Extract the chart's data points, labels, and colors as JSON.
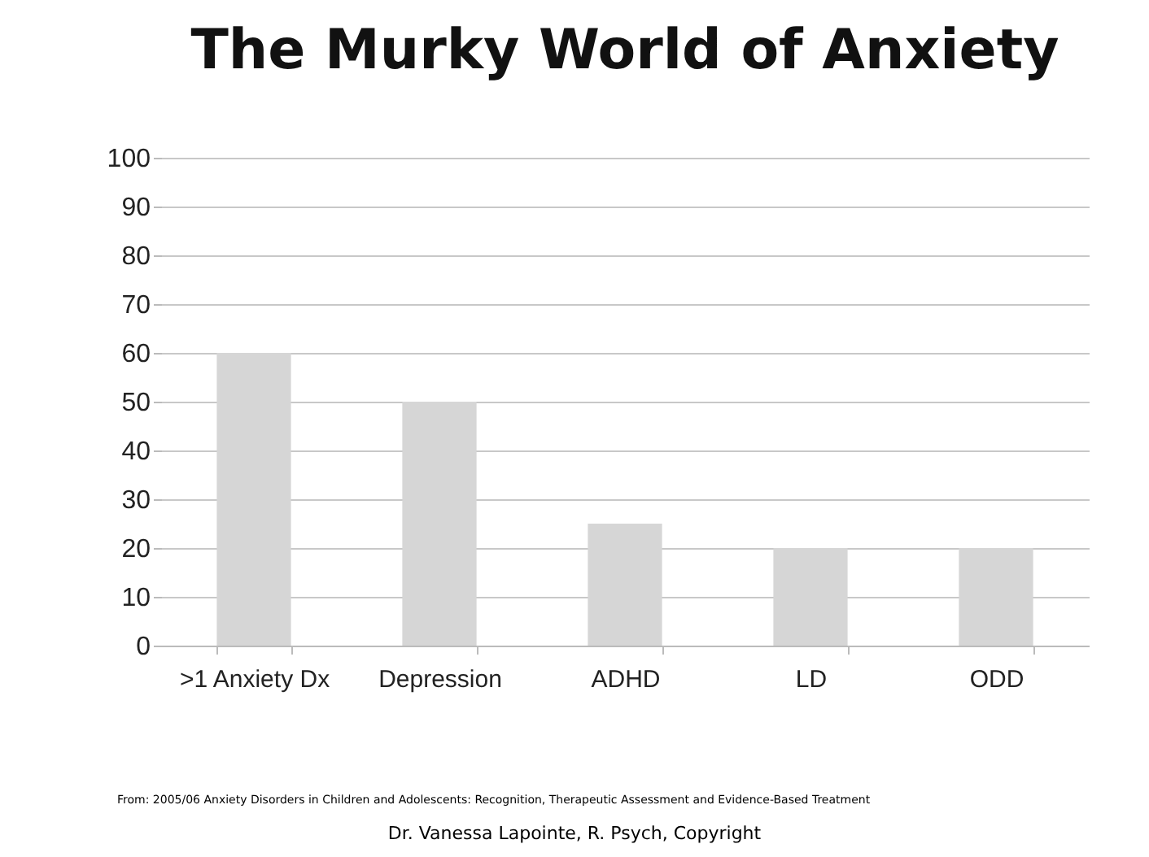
{
  "chart_data": {
    "type": "bar",
    "title": "The Murky World of Anxiety",
    "categories": [
      ">1 Anxiety Dx",
      "Depression",
      "ADHD",
      "LD",
      "ODD"
    ],
    "values": [
      60,
      50,
      25,
      20,
      20
    ],
    "color": "#d6d6d6",
    "ylim": [
      0,
      100
    ],
    "yticks": [
      0,
      10,
      20,
      30,
      40,
      50,
      60,
      70,
      80,
      90,
      100
    ],
    "grid": "y",
    "annotations": [
      "From: 2005/06 Anxiety Disorders in Children and Adolescents: Recognition, Therapeutic Assessment and Evidence-Based Treatment",
      "Dr. Vanessa Lapointe, R. Psych, Copyright"
    ]
  }
}
